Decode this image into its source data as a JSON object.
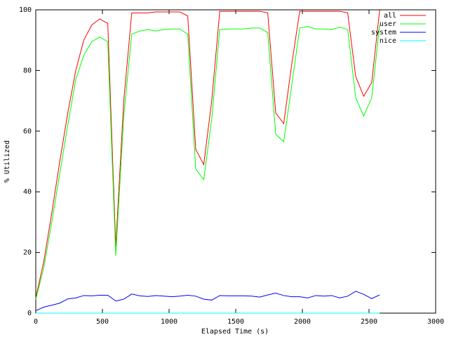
{
  "chart_data": {
    "type": "line",
    "xlabel": "Elapsed Time (s)",
    "ylabel": "% Utilized",
    "x": [
      0,
      60,
      120,
      180,
      240,
      300,
      360,
      420,
      480,
      540,
      600,
      660,
      720,
      780,
      840,
      900,
      960,
      1020,
      1080,
      1140,
      1200,
      1260,
      1320,
      1380,
      1440,
      1500,
      1560,
      1620,
      1680,
      1740,
      1800,
      1860,
      1920,
      1980,
      2040,
      2100,
      2160,
      2220,
      2280,
      2340,
      2400,
      2460,
      2520,
      2580
    ],
    "series": [
      {
        "name": "all",
        "color": "#ff0000",
        "values": [
          5,
          17,
          33,
          50,
          66,
          80,
          90,
          95,
          97,
          95.5,
          22,
          70,
          99,
          99,
          99,
          99.3,
          99.3,
          99.3,
          99.3,
          98,
          54,
          49,
          70,
          99.5,
          99.5,
          99.5,
          99.5,
          99.5,
          99.5,
          99,
          66,
          62.5,
          82,
          99.5,
          99.5,
          99.5,
          99.5,
          99.5,
          99.5,
          99,
          78,
          71.5,
          76,
          100
        ]
      },
      {
        "name": "user",
        "color": "#00ff00",
        "values": [
          4.5,
          15,
          30,
          46,
          62,
          77,
          85,
          89.5,
          91,
          89.5,
          19,
          65,
          92,
          93,
          93.5,
          93,
          93.5,
          93.7,
          93.7,
          92,
          47.5,
          44,
          64,
          93.5,
          93.7,
          93.7,
          93.7,
          94,
          94,
          92.5,
          59,
          56.5,
          75,
          94,
          94.5,
          93.7,
          93.7,
          93.5,
          94.3,
          93.5,
          71,
          65,
          71,
          95
        ]
      },
      {
        "name": "system",
        "color": "#0000ff",
        "values": [
          0.8,
          2,
          2.6,
          3.3,
          4.7,
          5,
          5.8,
          5.7,
          5.9,
          5.9,
          4,
          4.6,
          6.3,
          5.7,
          5.5,
          5.8,
          5.6,
          5.4,
          5.6,
          5.9,
          5.6,
          4.6,
          4.3,
          5.8,
          5.7,
          5.7,
          5.7,
          5.6,
          5.3,
          6,
          6.6,
          5.8,
          5.4,
          5.4,
          5,
          5.8,
          5.6,
          5.8,
          5,
          5.6,
          7.2,
          6.2,
          4.8,
          6
        ]
      },
      {
        "name": "nice",
        "color": "#00ffff",
        "values": [
          0,
          0,
          0,
          0,
          0,
          0,
          0,
          0,
          0,
          0,
          0,
          0,
          0,
          0,
          0,
          0,
          0,
          0,
          0,
          0,
          0,
          0,
          0,
          0,
          0,
          0,
          0,
          0,
          0,
          0,
          0,
          0,
          0,
          0,
          0,
          0,
          0,
          0,
          0,
          0,
          0,
          0,
          0,
          0
        ]
      }
    ],
    "xlim": [
      0,
      3000
    ],
    "xticks": [
      0,
      500,
      1000,
      1500,
      2000,
      2500,
      3000
    ],
    "ylim": [
      0,
      100
    ],
    "yticks": [
      0,
      20,
      40,
      60,
      80,
      100
    ],
    "legend": "top-right"
  }
}
